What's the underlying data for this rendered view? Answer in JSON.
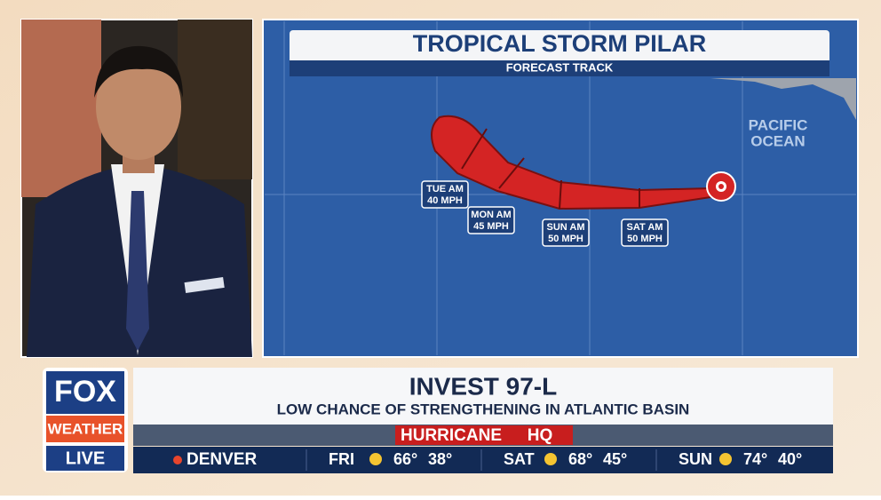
{
  "map": {
    "title": "TROPICAL STORM PILAR",
    "subtitle": "FORECAST TRACK",
    "ocean_label": [
      "PACIFIC",
      "OCEAN"
    ],
    "points": [
      {
        "day": "TUE AM",
        "wind": "40 MPH"
      },
      {
        "day": "MON AM",
        "wind": "45 MPH"
      },
      {
        "day": "SUN AM",
        "wind": "50 MPH"
      },
      {
        "day": "SAT AM",
        "wind": "50 MPH"
      }
    ]
  },
  "logo": {
    "top": "FOX",
    "bottom": "WEATHER",
    "status": "LIVE"
  },
  "lower_third": {
    "headline": "INVEST 97-L",
    "subhead": "LOW CHANCE OF STRENGTHENING IN ATLANTIC BASIN",
    "banner": "HURRICANE",
    "banner_tag": "HQ"
  },
  "ticker": {
    "city": "DENVER",
    "days": [
      {
        "day": "FRI",
        "high": "66°",
        "low": "38°"
      },
      {
        "day": "SAT",
        "high": "68°",
        "low": "45°"
      },
      {
        "day": "SUN",
        "high": "74°",
        "low": "40°"
      }
    ]
  }
}
